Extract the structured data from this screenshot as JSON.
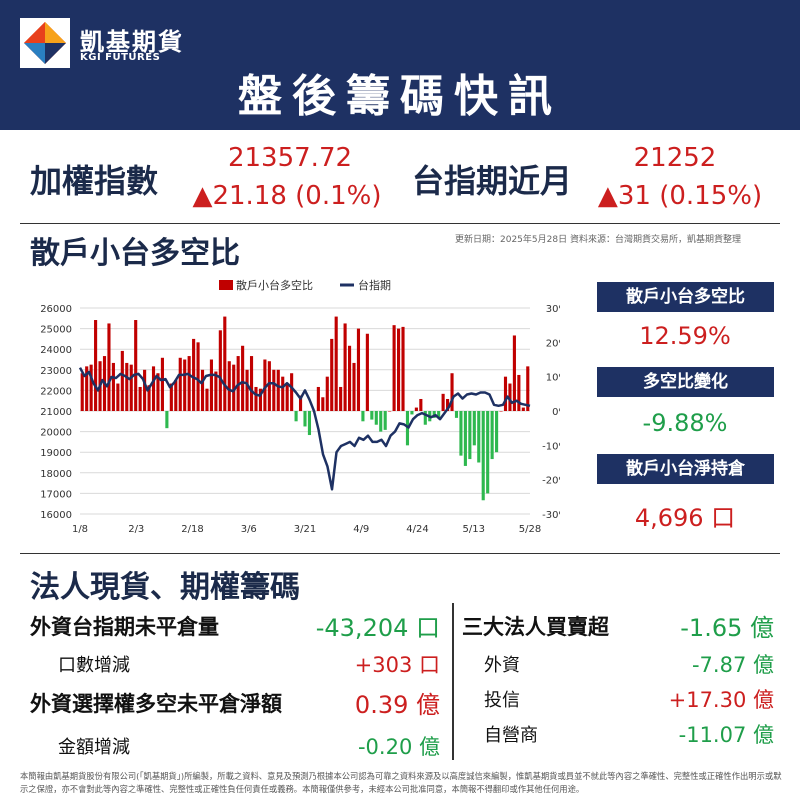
{
  "header": {
    "brand_cn": "凱基期貨",
    "brand_en": "KGI FUTURES",
    "title": "盤後籌碼快訊"
  },
  "index": {
    "taiex_label": "加權指數",
    "taiex_value": "21357.72",
    "taiex_change": "▲21.18 (0.1%)",
    "futures_label": "台指期近月",
    "futures_value": "21252",
    "futures_change": "▲31 (0.15%)"
  },
  "retail_section": {
    "title": "散戶小台多空比",
    "update_note": "更新日期：2025年5月28日  資料來源：台灣期貨交易所，凱基期貨整理"
  },
  "chart_data": {
    "type": "bar",
    "legend": [
      "散戶小台多空比",
      "台指期"
    ],
    "x_tick_labels": [
      "1/8",
      "2/3",
      "2/18",
      "3/6",
      "3/21",
      "4/9",
      "4/24",
      "5/13",
      "5/28"
    ],
    "left_axis": {
      "ylim": [
        16000,
        26000
      ],
      "ticks": [
        "16000",
        "17000",
        "18000",
        "19000",
        "20000",
        "21000",
        "22000",
        "23000",
        "24000",
        "25000",
        "26000"
      ]
    },
    "right_axis": {
      "ylim": [
        -30,
        30
      ],
      "ticks": [
        "-30%",
        "-20%",
        "-10%",
        "0%",
        "10%",
        "20%",
        "30%"
      ]
    },
    "series": [
      {
        "name": "散戶小台多空比",
        "kind": "bar",
        "color": "#c00000",
        "values": [
          11,
          13,
          13.5,
          26.5,
          14.5,
          16,
          25.5,
          14,
          8,
          17.5,
          14,
          13.5,
          26.5,
          7,
          12,
          7.5,
          13,
          11,
          15.5,
          -5,
          8,
          9,
          15.5,
          15,
          16,
          21,
          20,
          12,
          6.5,
          15,
          11.5,
          23.5,
          27.5,
          14.5,
          13.5,
          16,
          19,
          12,
          16,
          7,
          6.5,
          15,
          14.5,
          12,
          12,
          10,
          8,
          11,
          -3,
          4.5,
          -4.5,
          -7,
          0,
          7,
          4,
          10,
          21,
          27.5,
          7,
          25.5,
          19,
          14,
          24,
          -3,
          22.5,
          -2.5,
          -4,
          -6,
          -5.5,
          0,
          25,
          24,
          24.5,
          -10,
          -1,
          1,
          3.5,
          -4,
          -3,
          -2,
          -2,
          5,
          3.5,
          11,
          -2,
          -13,
          -16,
          -14,
          -10,
          -15,
          -26,
          -24,
          -14,
          -12,
          0,
          10,
          8,
          22,
          10.5,
          1,
          13
        ]
      },
      {
        "name": "台指期",
        "kind": "line",
        "color": "#1e3163",
        "values": [
          23100,
          22700,
          22900,
          22350,
          22000,
          22500,
          22200,
          22650,
          22600,
          22800,
          22700,
          22550,
          22750,
          22800,
          22550,
          22000,
          22350,
          22700,
          22500,
          22550,
          22150,
          22400,
          22750,
          22750,
          22800,
          22650,
          22550,
          22350,
          22700,
          22750,
          22750,
          22650,
          22300,
          22050,
          21950,
          22250,
          22400,
          22350,
          22000,
          21800,
          21750,
          22100,
          22350,
          22350,
          22200,
          22150,
          22350,
          22150,
          21900,
          21600,
          22000,
          21550,
          21000,
          20100,
          18900,
          18300,
          17200,
          19000,
          19300,
          19400,
          19500,
          19300,
          19700,
          19600,
          19800,
          19500,
          19500,
          19600,
          19300,
          19800,
          20000,
          20400,
          20350,
          20200,
          20600,
          20800,
          20900,
          20800,
          20700,
          20800,
          20600,
          20900,
          21200,
          21700,
          21850,
          21600,
          21800,
          21850,
          21800,
          21900,
          21900,
          21800,
          21300,
          21250,
          21300,
          21700,
          21400,
          21500,
          21350,
          21300,
          21252
        ]
      }
    ]
  },
  "stats": {
    "ratio_label": "散戶小台多空比",
    "ratio_value": "12.59%",
    "change_label": "多空比變化",
    "change_value": "-9.88%",
    "net_label": "散戶小台淨持倉",
    "net_value": "4,696 口"
  },
  "institutional": {
    "title": "法人現貨、期權籌碼",
    "foreign_oi_label": "外資台指期未平倉量",
    "foreign_oi_value": "-43,204 口",
    "lots_change_label": "口數增減",
    "lots_change_value": "+303 口",
    "options_label": "外資選擇權多空未平倉淨額",
    "options_value": "0.39 億",
    "amount_change_label": "金額增減",
    "amount_change_value": "-0.20 億",
    "big3_label": "三大法人買賣超",
    "big3_value": "-1.65 億",
    "foreign_label": "外資",
    "foreign_value": "-7.87 億",
    "trust_label": "投信",
    "trust_value": "+17.30 億",
    "dealer_label": "自營商",
    "dealer_value": "-11.07 億"
  },
  "footer": {
    "disclaimer": "本簡報由凱基期貨股份有限公司(「凱基期貨」)所編製，所載之資料、意見及預測乃根據本公司認為可靠之資料來源及以高度誠信來編製，惟凱基期貨或員並不就此等內容之準確性、完整性或正確性作出明示或默示之保證，亦不會對此等內容之準確性、完整性或正確性負任何責任或義務。本簡報僅供參考，未經本公司批准同意，本簡報不得翻印或作其他任何用途。"
  },
  "colors": {
    "navy": "#1e3163",
    "red": "#cc1f1f",
    "green": "#1f9e4a",
    "bar_negative": "#2eb84f"
  }
}
